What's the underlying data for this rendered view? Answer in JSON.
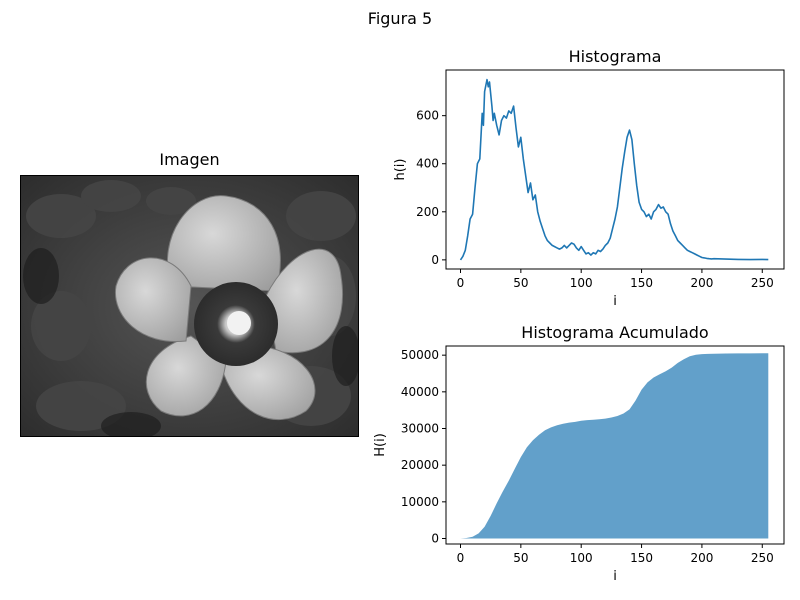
{
  "figure": {
    "title": "Figura 5"
  },
  "image_panel": {
    "title": "Imagen",
    "image": "grayscale flower photo"
  },
  "chart_data": [
    {
      "type": "line",
      "title": "Histograma",
      "xlabel": "i",
      "ylabel": "h(i)",
      "xlim": [
        -12,
        268
      ],
      "ylim": [
        -38,
        790
      ],
      "xticks": [
        0,
        50,
        100,
        150,
        200,
        250
      ],
      "yticks": [
        0,
        200,
        400,
        600
      ],
      "color": "#1f77b4",
      "x": [
        0,
        2,
        4,
        6,
        8,
        10,
        12,
        14,
        16,
        18,
        19,
        20,
        22,
        23,
        24,
        26,
        27,
        28,
        30,
        32,
        34,
        36,
        38,
        40,
        42,
        44,
        46,
        48,
        50,
        52,
        54,
        56,
        58,
        60,
        62,
        64,
        66,
        68,
        70,
        72,
        74,
        76,
        78,
        80,
        82,
        84,
        86,
        88,
        90,
        92,
        94,
        96,
        98,
        100,
        102,
        104,
        106,
        108,
        110,
        112,
        114,
        116,
        118,
        120,
        122,
        124,
        126,
        128,
        130,
        132,
        134,
        136,
        138,
        140,
        142,
        144,
        146,
        148,
        150,
        152,
        154,
        156,
        158,
        160,
        162,
        164,
        166,
        168,
        170,
        172,
        174,
        176,
        178,
        180,
        182,
        184,
        186,
        188,
        190,
        192,
        194,
        196,
        198,
        200,
        202,
        204,
        206,
        208,
        210,
        220,
        230,
        240,
        250,
        255
      ],
      "y": [
        0,
        15,
        40,
        100,
        170,
        190,
        300,
        400,
        420,
        610,
        560,
        700,
        750,
        720,
        740,
        640,
        580,
        610,
        560,
        520,
        580,
        600,
        590,
        620,
        610,
        640,
        550,
        470,
        510,
        420,
        350,
        280,
        320,
        250,
        270,
        200,
        160,
        130,
        100,
        80,
        70,
        60,
        55,
        50,
        45,
        50,
        60,
        50,
        60,
        70,
        65,
        50,
        40,
        55,
        40,
        25,
        30,
        20,
        30,
        25,
        40,
        35,
        45,
        60,
        70,
        90,
        130,
        170,
        220,
        300,
        380,
        450,
        510,
        540,
        500,
        400,
        310,
        240,
        210,
        200,
        180,
        190,
        170,
        200,
        210,
        230,
        215,
        220,
        200,
        190,
        150,
        120,
        100,
        80,
        70,
        60,
        50,
        40,
        35,
        30,
        25,
        20,
        15,
        10,
        8,
        6,
        5,
        4,
        5,
        3,
        2,
        1,
        2,
        1
      ]
    },
    {
      "type": "area",
      "title": "Histograma Acumulado",
      "xlabel": "i",
      "ylabel": "H(i)",
      "xlim": [
        -12,
        268
      ],
      "ylim": [
        -1500,
        52500
      ],
      "xticks": [
        0,
        50,
        100,
        150,
        200,
        250
      ],
      "yticks": [
        0,
        10000,
        20000,
        30000,
        40000,
        50000
      ],
      "color": "#1f77b4",
      "opacity": 0.7,
      "x": [
        0,
        5,
        10,
        15,
        20,
        25,
        30,
        35,
        40,
        45,
        50,
        55,
        60,
        65,
        70,
        75,
        80,
        85,
        90,
        95,
        100,
        105,
        110,
        115,
        120,
        125,
        130,
        135,
        140,
        145,
        150,
        155,
        160,
        165,
        170,
        175,
        180,
        185,
        190,
        195,
        200,
        205,
        210,
        220,
        230,
        240,
        250,
        255
      ],
      "y": [
        0,
        150,
        500,
        1400,
        3200,
        6200,
        9600,
        12800,
        15800,
        19000,
        22200,
        24900,
        26800,
        28300,
        29500,
        30300,
        30900,
        31300,
        31600,
        31800,
        32100,
        32300,
        32400,
        32500,
        32700,
        33000,
        33400,
        34100,
        35200,
        37600,
        40600,
        42600,
        43900,
        44800,
        45600,
        46600,
        47900,
        48900,
        49700,
        50100,
        50300,
        50350,
        50400,
        50450,
        50480,
        50490,
        50500,
        50500
      ]
    }
  ]
}
